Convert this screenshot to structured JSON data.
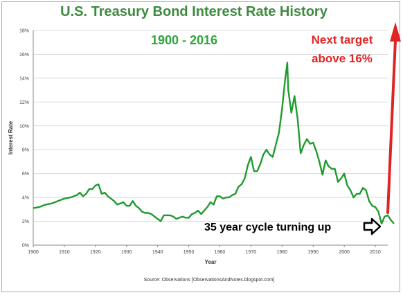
{
  "chart_data": {
    "type": "line",
    "title": "U.S. Treasury Bond Interest Rate History",
    "xlabel": "Year",
    "ylabel": "Interest Rate",
    "xlim": [
      1900,
      2014
    ],
    "ylim": [
      0,
      18
    ],
    "x_ticks": [
      "1900",
      "1910",
      "1920",
      "1930",
      "1940",
      "1950",
      "1960",
      "1970",
      "1980",
      "1990",
      "2000",
      "2010"
    ],
    "y_ticks": [
      "0%",
      "2%",
      "4%",
      "6%",
      "8%",
      "10%",
      "12%",
      "14%",
      "16%",
      "18%"
    ],
    "grid": true,
    "source": "Source: Observations    [ObservationsAndNotes.blogspot.com]",
    "annotations": {
      "range": "1900 - 2016",
      "target_line1": "Next target",
      "target_line2": "above 16%",
      "cycle": "35 year cycle turning up"
    },
    "series": [
      {
        "color": "#1f9b2e",
        "points": [
          [
            1900,
            3.1
          ],
          [
            1902,
            3.2
          ],
          [
            1904,
            3.4
          ],
          [
            1906,
            3.5
          ],
          [
            1908,
            3.7
          ],
          [
            1910,
            3.9
          ],
          [
            1912,
            4.0
          ],
          [
            1914,
            4.2
          ],
          [
            1915,
            4.4
          ],
          [
            1916,
            4.1
          ],
          [
            1917,
            4.3
          ],
          [
            1918,
            4.7
          ],
          [
            1919,
            4.7
          ],
          [
            1920,
            5.0
          ],
          [
            1921,
            5.1
          ],
          [
            1922,
            4.3
          ],
          [
            1923,
            4.4
          ],
          [
            1924,
            4.1
          ],
          [
            1925,
            3.9
          ],
          [
            1926,
            3.7
          ],
          [
            1927,
            3.4
          ],
          [
            1928,
            3.5
          ],
          [
            1929,
            3.6
          ],
          [
            1930,
            3.3
          ],
          [
            1931,
            3.3
          ],
          [
            1932,
            3.7
          ],
          [
            1933,
            3.3
          ],
          [
            1934,
            3.1
          ],
          [
            1935,
            2.8
          ],
          [
            1936,
            2.7
          ],
          [
            1937,
            2.7
          ],
          [
            1938,
            2.6
          ],
          [
            1939,
            2.4
          ],
          [
            1940,
            2.2
          ],
          [
            1941,
            2.0
          ],
          [
            1942,
            2.5
          ],
          [
            1943,
            2.5
          ],
          [
            1944,
            2.5
          ],
          [
            1945,
            2.4
          ],
          [
            1946,
            2.2
          ],
          [
            1947,
            2.3
          ],
          [
            1948,
            2.4
          ],
          [
            1949,
            2.3
          ],
          [
            1950,
            2.3
          ],
          [
            1951,
            2.6
          ],
          [
            1952,
            2.7
          ],
          [
            1953,
            2.9
          ],
          [
            1954,
            2.6
          ],
          [
            1955,
            2.9
          ],
          [
            1956,
            3.2
          ],
          [
            1957,
            3.6
          ],
          [
            1958,
            3.4
          ],
          [
            1959,
            4.1
          ],
          [
            1960,
            4.1
          ],
          [
            1961,
            3.9
          ],
          [
            1962,
            4.0
          ],
          [
            1963,
            4.0
          ],
          [
            1964,
            4.2
          ],
          [
            1965,
            4.3
          ],
          [
            1966,
            4.9
          ],
          [
            1967,
            5.1
          ],
          [
            1968,
            5.6
          ],
          [
            1969,
            6.7
          ],
          [
            1970,
            7.4
          ],
          [
            1971,
            6.2
          ],
          [
            1972,
            6.2
          ],
          [
            1973,
            6.8
          ],
          [
            1974,
            7.6
          ],
          [
            1975,
            8.0
          ],
          [
            1976,
            7.6
          ],
          [
            1977,
            7.4
          ],
          [
            1978,
            8.4
          ],
          [
            1979,
            9.4
          ],
          [
            1980,
            11.4
          ],
          [
            1981,
            13.9
          ],
          [
            1981.7,
            15.3
          ],
          [
            1982,
            13.0
          ],
          [
            1983,
            11.1
          ],
          [
            1984,
            12.5
          ],
          [
            1985,
            10.6
          ],
          [
            1986,
            7.7
          ],
          [
            1987,
            8.4
          ],
          [
            1988,
            8.9
          ],
          [
            1989,
            8.5
          ],
          [
            1990,
            8.6
          ],
          [
            1991,
            7.9
          ],
          [
            1992,
            7.0
          ],
          [
            1993,
            5.9
          ],
          [
            1994,
            7.1
          ],
          [
            1995,
            6.6
          ],
          [
            1996,
            6.4
          ],
          [
            1997,
            6.4
          ],
          [
            1998,
            5.3
          ],
          [
            1999,
            5.6
          ],
          [
            2000,
            6.0
          ],
          [
            2001,
            5.0
          ],
          [
            2002,
            4.6
          ],
          [
            2003,
            4.0
          ],
          [
            2004,
            4.3
          ],
          [
            2005,
            4.3
          ],
          [
            2006,
            4.8
          ],
          [
            2007,
            4.6
          ],
          [
            2008,
            3.7
          ],
          [
            2009,
            3.3
          ],
          [
            2010,
            3.2
          ],
          [
            2011,
            2.8
          ],
          [
            2012,
            1.8
          ],
          [
            2013,
            2.4
          ],
          [
            2014,
            2.5
          ],
          [
            2015,
            2.1
          ],
          [
            2016,
            1.8
          ]
        ]
      }
    ]
  }
}
